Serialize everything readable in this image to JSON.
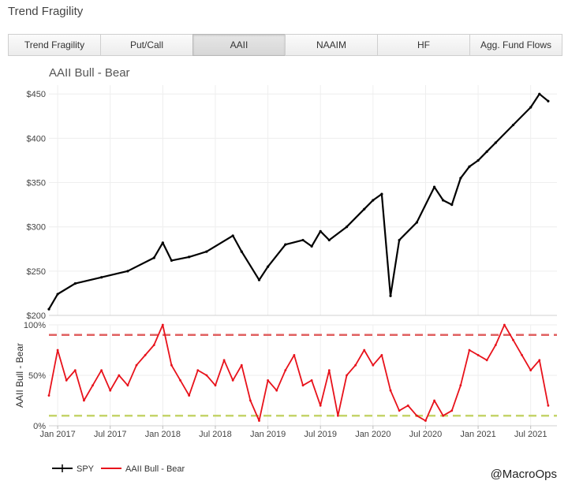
{
  "app": {
    "title": "Trend Fragility"
  },
  "tabs": [
    {
      "label": "Trend Fragility",
      "active": false
    },
    {
      "label": "Put/Call",
      "active": false
    },
    {
      "label": "AAII",
      "active": true
    },
    {
      "label": "NAAIM",
      "active": false
    },
    {
      "label": "HF",
      "active": false
    },
    {
      "label": "Agg. Fund Flows",
      "active": false
    }
  ],
  "credit": "@MacroOps",
  "chart_data": [
    {
      "type": "line",
      "title": "AAII Bull - Bear",
      "y_ticks": [
        "$200",
        "$250",
        "$300",
        "$350",
        "$400",
        "$450"
      ],
      "ylim": [
        200,
        460
      ],
      "x_range": [
        "2016-12",
        "2021-10"
      ],
      "grid": true,
      "series": [
        {
          "name": "SPY",
          "color": "#000000",
          "x": [
            "2016-12",
            "2017-01",
            "2017-03",
            "2017-06",
            "2017-09",
            "2017-12",
            "2018-01",
            "2018-02",
            "2018-04",
            "2018-06",
            "2018-09",
            "2018-10",
            "2018-12",
            "2019-01",
            "2019-03",
            "2019-05",
            "2019-06",
            "2019-07",
            "2019-08",
            "2019-10",
            "2019-12",
            "2020-01",
            "2020-02",
            "2020-03",
            "2020-04",
            "2020-06",
            "2020-08",
            "2020-09",
            "2020-10",
            "2020-11",
            "2020-12",
            "2021-01",
            "2021-02",
            "2021-03",
            "2021-05",
            "2021-07",
            "2021-08",
            "2021-09"
          ],
          "values": [
            207,
            224,
            236,
            243,
            250,
            265,
            282,
            262,
            266,
            272,
            290,
            272,
            240,
            255,
            280,
            285,
            278,
            295,
            285,
            300,
            320,
            330,
            337,
            222,
            285,
            305,
            345,
            330,
            325,
            355,
            368,
            375,
            385,
            395,
            415,
            435,
            450,
            442
          ]
        }
      ]
    },
    {
      "type": "line",
      "ylabel": "AAII Bull - Bear",
      "y_ticks": [
        "0%",
        "50%",
        "100%"
      ],
      "ylim": [
        0,
        100
      ],
      "x_ticks": [
        "Jan 2017",
        "Jul 2017",
        "Jan 2018",
        "Jul 2018",
        "Jan 2019",
        "Jul 2019",
        "Jan 2020",
        "Jul 2020",
        "Jan 2021",
        "Jul 2021"
      ],
      "reference_lines": [
        {
          "value": 90,
          "color": "#e06060"
        },
        {
          "value": 10,
          "color": "#c5d46a"
        }
      ],
      "series": [
        {
          "name": "AAII Bull - Bear",
          "color": "#e8121b",
          "x": [
            "2016-12",
            "2017-01",
            "2017-02",
            "2017-03",
            "2017-04",
            "2017-05",
            "2017-06",
            "2017-07",
            "2017-08",
            "2017-09",
            "2017-10",
            "2017-11",
            "2017-12",
            "2018-01",
            "2018-02",
            "2018-03",
            "2018-04",
            "2018-05",
            "2018-06",
            "2018-07",
            "2018-08",
            "2018-09",
            "2018-10",
            "2018-11",
            "2018-12",
            "2019-01",
            "2019-02",
            "2019-03",
            "2019-04",
            "2019-05",
            "2019-06",
            "2019-07",
            "2019-08",
            "2019-09",
            "2019-10",
            "2019-11",
            "2019-12",
            "2020-01",
            "2020-02",
            "2020-03",
            "2020-04",
            "2020-05",
            "2020-06",
            "2020-07",
            "2020-08",
            "2020-09",
            "2020-10",
            "2020-11",
            "2020-12",
            "2021-01",
            "2021-02",
            "2021-03",
            "2021-04",
            "2021-05",
            "2021-06",
            "2021-07",
            "2021-08",
            "2021-09"
          ],
          "values": [
            30,
            75,
            45,
            55,
            25,
            40,
            55,
            35,
            50,
            40,
            60,
            70,
            80,
            100,
            60,
            45,
            30,
            55,
            50,
            40,
            65,
            45,
            60,
            25,
            5,
            45,
            35,
            55,
            70,
            40,
            45,
            20,
            55,
            10,
            50,
            60,
            75,
            60,
            70,
            35,
            15,
            20,
            10,
            5,
            25,
            10,
            15,
            40,
            75,
            70,
            65,
            80,
            100,
            85,
            70,
            55,
            65,
            20
          ]
        }
      ]
    }
  ],
  "legend": [
    {
      "label": "SPY",
      "color": "#000000"
    },
    {
      "label": "AAII Bull - Bear",
      "color": "#e8121b"
    }
  ]
}
